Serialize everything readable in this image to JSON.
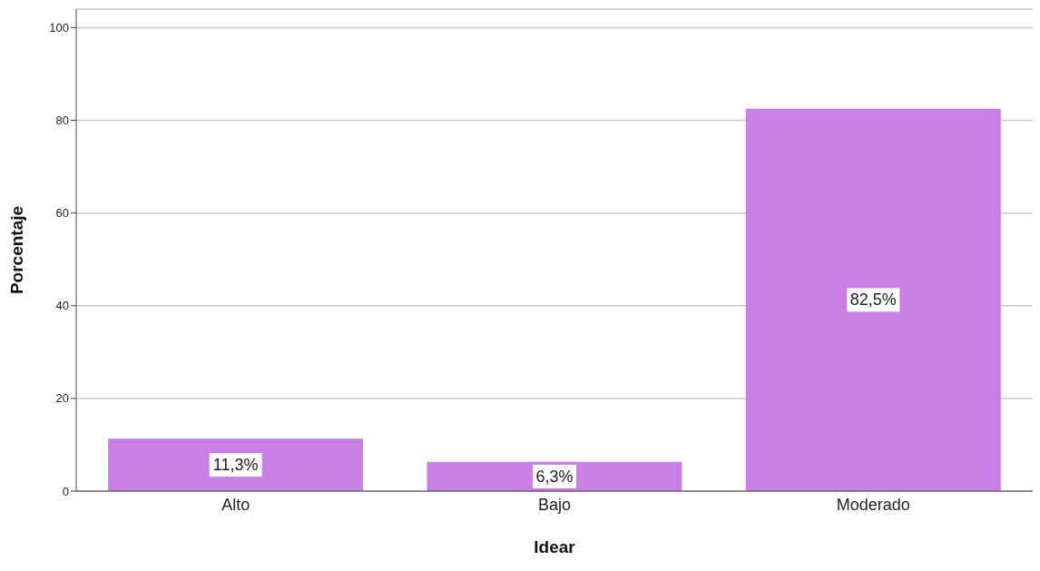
{
  "chart_data": {
    "type": "bar",
    "xlabel": "Idear",
    "ylabel": "Porcentaje",
    "categories": [
      "Alto",
      "Bajo",
      "Moderado"
    ],
    "values": [
      11.3,
      6.3,
      82.5
    ],
    "value_labels": [
      "11,3%",
      "6,3%",
      "82,5%"
    ],
    "color": "#c97fe6",
    "ylim": [
      0,
      104
    ],
    "yticks": [
      0,
      20,
      40,
      60,
      80,
      100
    ],
    "grid": "y"
  }
}
